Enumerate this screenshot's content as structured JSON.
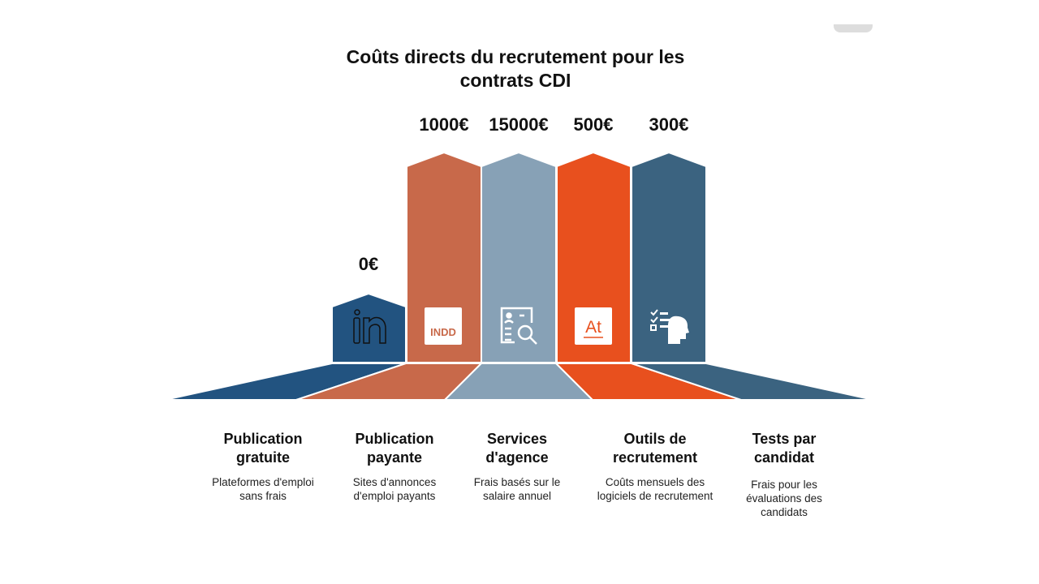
{
  "title": "Coûts directs du recrutement pour les contrats CDI",
  "colors": [
    "#225380",
    "#c8694a",
    "#87a1b6",
    "#e8501e",
    "#3b6380"
  ],
  "items": [
    {
      "value": "0€",
      "title": "Publication gratuite",
      "desc": "Plateformes d'emploi sans frais",
      "icon": "linkedin-icon"
    },
    {
      "value": "1000€",
      "title": "Publication payante",
      "desc": "Sites d'annonces d'emploi payants",
      "icon": "indd-file-icon",
      "icon_text": "INDD"
    },
    {
      "value": "15000€",
      "title": "Services d'agence",
      "desc": "Frais basés sur le salaire annuel",
      "icon": "resume-search-icon"
    },
    {
      "value": "500€",
      "title": "Outils de recrutement",
      "desc": "Coûts mensuels des logiciels de recrutement",
      "icon": "at-file-icon",
      "icon_text": "At"
    },
    {
      "value": "300€",
      "title": "Tests par candidat",
      "desc": "Frais pour les évaluations des candidats",
      "icon": "assessment-head-icon"
    }
  ]
}
